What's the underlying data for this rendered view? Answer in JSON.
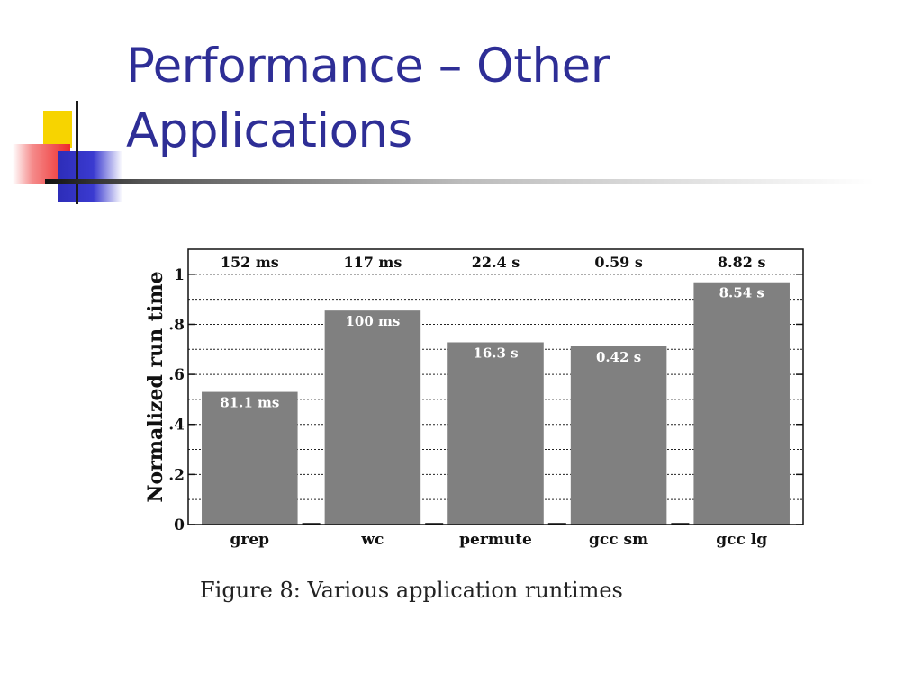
{
  "slide": {
    "title_line1": "Performance – Other",
    "title_line2": "Applications",
    "caption": "Figure 8: Various application runtimes"
  },
  "colors": {
    "title": "#2e2e96",
    "bar": "#808080",
    "bar_label": "#ffffff",
    "text": "#111111"
  },
  "chart_data": {
    "type": "bar",
    "categories": [
      "grep",
      "wc",
      "permute",
      "gcc sm",
      "gcc lg"
    ],
    "values": [
      0.53,
      0.855,
      0.728,
      0.712,
      0.968
    ],
    "bar_labels": [
      "81.1 ms",
      "100 ms",
      "16.3 s",
      "0.42 s",
      "8.54 s"
    ],
    "top_labels": [
      "152 ms",
      "117 ms",
      "22.4 s",
      "0.59 s",
      "8.82 s"
    ],
    "ylabel": "Normalized run time",
    "xlabel": "",
    "ylim": [
      0,
      1.1
    ],
    "yticks": [
      0,
      0.2,
      0.4,
      0.6,
      0.8,
      1
    ],
    "ytick_labels": [
      "0",
      ".2",
      ".4",
      ".6",
      ".8",
      "1"
    ],
    "grid": true,
    "grid_step": 0.1,
    "legend": "none"
  }
}
